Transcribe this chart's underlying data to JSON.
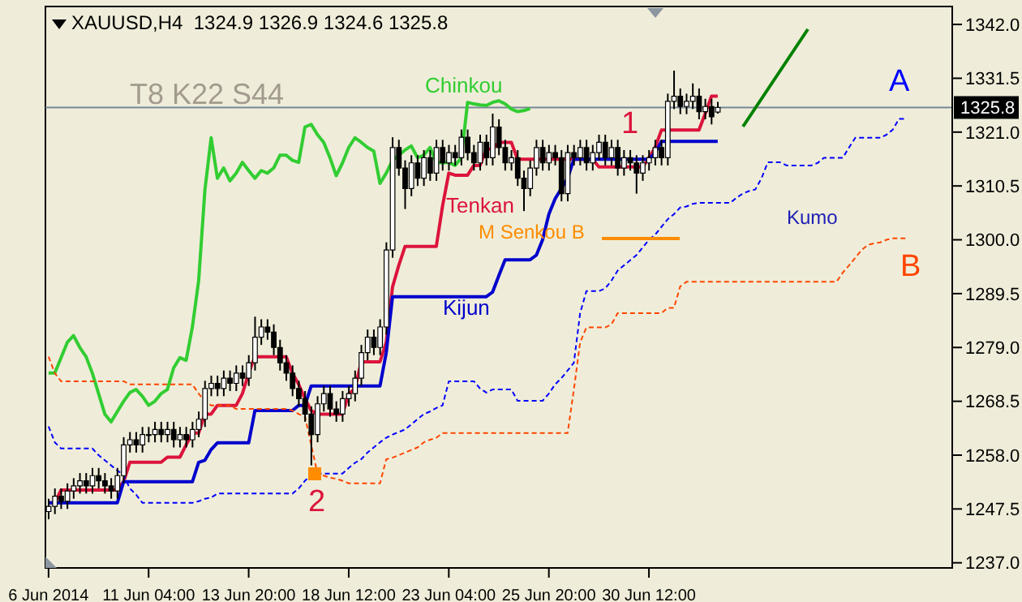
{
  "chart_data": {
    "type": "candlestick",
    "title": "XAUUSD,H4  1324.9 1326.9 1324.6 1325.8",
    "categories": [
      "6 Jun 2014",
      null,
      null,
      null,
      null,
      null,
      null,
      null,
      null,
      null,
      null,
      null,
      null,
      null,
      null,
      null,
      "11 Jun 04:00",
      null,
      null,
      null,
      null,
      null,
      null,
      null,
      null,
      null,
      null,
      null,
      null,
      null,
      null,
      null,
      "13 Jun 20:00",
      null,
      null,
      null,
      null,
      null,
      null,
      null,
      null,
      null,
      null,
      null,
      null,
      null,
      null,
      null,
      "18 Jun 12:00",
      null,
      null,
      null,
      null,
      null,
      null,
      null,
      null,
      null,
      null,
      null,
      null,
      null,
      null,
      null,
      "23 Jun 04:00",
      null,
      null,
      null,
      null,
      null,
      null,
      null,
      null,
      null,
      null,
      null,
      null,
      null,
      null,
      null,
      "25 Jun 20:00",
      null,
      null,
      null,
      null,
      null,
      null,
      null,
      null,
      null,
      null,
      null,
      null,
      null,
      null,
      null,
      "30 Jun 12:00",
      null,
      null,
      null,
      null,
      null,
      null,
      null,
      null,
      null,
      null,
      null,
      null,
      null,
      null,
      null,
      null,
      null,
      null,
      null,
      null,
      null,
      null,
      null,
      null,
      null,
      null,
      null,
      null,
      null,
      null,
      null,
      null,
      null,
      null,
      null,
      null,
      null,
      null,
      null,
      null,
      null,
      null,
      null,
      null,
      null,
      null,
      null,
      null
    ],
    "ohlc": [
      [
        1247,
        1249.5,
        1245.5,
        1248
      ],
      [
        1248,
        1251.5,
        1246.5,
        1250
      ],
      [
        1250,
        1251.5,
        1247.5,
        1249
      ],
      [
        1249,
        1252.5,
        1247.5,
        1251
      ],
      [
        1251,
        1253.5,
        1249.5,
        1252
      ],
      [
        1252,
        1254.5,
        1250.5,
        1253
      ],
      [
        1253,
        1254.5,
        1250.5,
        1252
      ],
      [
        1252,
        1255.5,
        1250.5,
        1254
      ],
      [
        1254,
        1255.5,
        1251.5,
        1253
      ],
      [
        1253,
        1254.5,
        1250.5,
        1252
      ],
      [
        1252,
        1253.5,
        1249.5,
        1251
      ],
      [
        1251,
        1255.5,
        1249.5,
        1254
      ],
      [
        1254,
        1261.5,
        1252.5,
        1260
      ],
      [
        1260,
        1262.5,
        1258.5,
        1261
      ],
      [
        1261,
        1262.5,
        1258.5,
        1260
      ],
      [
        1260,
        1263.5,
        1258.5,
        1262
      ],
      [
        1262,
        1263.5,
        1260.5,
        1262
      ],
      [
        1262,
        1264.5,
        1260.5,
        1263
      ],
      [
        1263,
        1264.5,
        1260.5,
        1262
      ],
      [
        1262,
        1264.5,
        1260.5,
        1263
      ],
      [
        1263,
        1264.5,
        1259.5,
        1261
      ],
      [
        1261,
        1263.5,
        1259.5,
        1262
      ],
      [
        1262,
        1263.5,
        1259.5,
        1261
      ],
      [
        1261,
        1264.5,
        1259.5,
        1263
      ],
      [
        1263,
        1266.5,
        1261.5,
        1265
      ],
      [
        1265,
        1272.5,
        1263.5,
        1271
      ],
      [
        1271,
        1273.5,
        1269.5,
        1272
      ],
      [
        1272,
        1273.5,
        1269.5,
        1271
      ],
      [
        1271,
        1274.5,
        1269.5,
        1273
      ],
      [
        1273,
        1274.5,
        1270.5,
        1272
      ],
      [
        1272,
        1275.5,
        1270.5,
        1274
      ],
      [
        1274,
        1275.5,
        1271.5,
        1273
      ],
      [
        1273,
        1277.5,
        1271.5,
        1276
      ],
      [
        1276,
        1285,
        1274.5,
        1281
      ],
      [
        1281,
        1284.5,
        1279.5,
        1283
      ],
      [
        1283,
        1284.5,
        1280.5,
        1282
      ],
      [
        1282,
        1283.5,
        1277.5,
        1279
      ],
      [
        1279,
        1280.5,
        1274.5,
        1276
      ],
      [
        1276,
        1277.5,
        1272.5,
        1274
      ],
      [
        1274,
        1275.5,
        1269.5,
        1271
      ],
      [
        1271,
        1272.5,
        1267.5,
        1269
      ],
      [
        1269,
        1270.5,
        1264.5,
        1266
      ],
      [
        1266,
        1267.5,
        1256,
        1262
      ],
      [
        1262,
        1269.5,
        1260.5,
        1268
      ],
      [
        1268,
        1271.5,
        1266.5,
        1270
      ],
      [
        1270,
        1271.5,
        1265.5,
        1267
      ],
      [
        1267,
        1268.5,
        1264.5,
        1266
      ],
      [
        1266,
        1270.5,
        1264.5,
        1269
      ],
      [
        1269,
        1271.5,
        1267.5,
        1270
      ],
      [
        1270,
        1274.5,
        1268.5,
        1273
      ],
      [
        1273,
        1279.5,
        1271.5,
        1278
      ],
      [
        1278,
        1282.5,
        1276.5,
        1281
      ],
      [
        1281,
        1282.5,
        1277.5,
        1279
      ],
      [
        1279,
        1284.5,
        1277.5,
        1283
      ],
      [
        1283,
        1299.5,
        1281.5,
        1298
      ],
      [
        1298,
        1320,
        1296.5,
        1318
      ],
      [
        1318,
        1319.5,
        1312.5,
        1314
      ],
      [
        1314,
        1315.5,
        1306,
        1310
      ],
      [
        1310,
        1316.5,
        1308.5,
        1315
      ],
      [
        1315,
        1316.5,
        1310.5,
        1312
      ],
      [
        1312,
        1317.5,
        1310.5,
        1316
      ],
      [
        1316,
        1317.5,
        1311.5,
        1313
      ],
      [
        1313,
        1319.5,
        1311.5,
        1318
      ],
      [
        1318,
        1319.5,
        1313.5,
        1315
      ],
      [
        1315,
        1318.5,
        1313.5,
        1317
      ],
      [
        1317,
        1318.5,
        1314.5,
        1316
      ],
      [
        1316,
        1321.5,
        1314.5,
        1320
      ],
      [
        1320,
        1321.5,
        1315.5,
        1317
      ],
      [
        1317,
        1318.5,
        1313.5,
        1315
      ],
      [
        1315,
        1320.5,
        1313.5,
        1319
      ],
      [
        1319,
        1320.5,
        1314.5,
        1316
      ],
      [
        1316,
        1324.6,
        1314.5,
        1322
      ],
      [
        1322,
        1323.5,
        1316.5,
        1318
      ],
      [
        1318,
        1319.5,
        1313.5,
        1315
      ],
      [
        1315,
        1317.5,
        1313.5,
        1316
      ],
      [
        1316,
        1317.5,
        1310.5,
        1312
      ],
      [
        1312,
        1313.5,
        1305.6,
        1310
      ],
      [
        1310,
        1315.5,
        1308.5,
        1314
      ],
      [
        1314,
        1319.5,
        1312.5,
        1318
      ],
      [
        1318,
        1319.5,
        1313.5,
        1315
      ],
      [
        1315,
        1318.5,
        1313.5,
        1317
      ],
      [
        1317,
        1318.5,
        1314.5,
        1316
      ],
      [
        1316,
        1317.5,
        1307.5,
        1309
      ],
      [
        1309,
        1318.5,
        1307.5,
        1317
      ],
      [
        1317,
        1318.5,
        1314.5,
        1316
      ],
      [
        1316,
        1319.5,
        1314.5,
        1318
      ],
      [
        1318,
        1319.5,
        1313.5,
        1315
      ],
      [
        1315,
        1318.5,
        1313.5,
        1317
      ],
      [
        1317,
        1320.5,
        1315.5,
        1319
      ],
      [
        1319,
        1320.5,
        1314.5,
        1316
      ],
      [
        1316,
        1319.5,
        1314.5,
        1318
      ],
      [
        1318,
        1319.5,
        1312.5,
        1314
      ],
      [
        1314,
        1317.5,
        1312.5,
        1316
      ],
      [
        1316,
        1317.5,
        1313.5,
        1315
      ],
      [
        1315,
        1316.5,
        1309,
        1313
      ],
      [
        1313,
        1316.5,
        1311.5,
        1315
      ],
      [
        1315,
        1317.5,
        1313.5,
        1316
      ],
      [
        1316,
        1319.5,
        1314.5,
        1318
      ],
      [
        1318,
        1319.5,
        1314.5,
        1316
      ],
      [
        1316,
        1328.5,
        1314.5,
        1327
      ],
      [
        1327,
        1333,
        1325.5,
        1328
      ],
      [
        1328,
        1329.5,
        1324.5,
        1326
      ],
      [
        1326,
        1328.5,
        1324.5,
        1327
      ],
      [
        1327,
        1330.5,
        1325.5,
        1328
      ],
      [
        1328,
        1329.5,
        1323.5,
        1325
      ],
      [
        1325,
        1327.5,
        1323.5,
        1326
      ],
      [
        1326,
        1327.5,
        1322.5,
        1324
      ],
      [
        1324.9,
        1326.9,
        1324.6,
        1325.8
      ],
      null,
      null,
      null,
      null,
      null,
      null,
      null,
      null,
      null,
      null,
      null,
      null,
      null,
      null,
      null,
      null,
      null,
      null,
      null,
      null,
      null,
      null,
      null,
      null,
      null,
      null,
      null,
      null,
      null,
      null,
      null,
      null,
      null,
      null,
      null,
      null,
      null
    ],
    "series": [
      {
        "name": "Tenkan",
        "type": "line",
        "color": "#dc143c",
        "line_style": "solid",
        "values": [
          1248.7,
          1248.7,
          1251.2,
          1251.2,
          1251.2,
          1251.2,
          1251.2,
          1251.2,
          1251.2,
          1251.2,
          1251.2,
          1251.2,
          1252.8,
          1256.6,
          1256.6,
          1256.6,
          1256.6,
          1256.6,
          1256.6,
          1257.6,
          1257.6,
          1257.6,
          1260,
          1262.3,
          1262.3,
          1266,
          1266,
          1267.7,
          1267.7,
          1267.7,
          1267.7,
          1270,
          1274,
          1277.2,
          1277.2,
          1277.2,
          1277.2,
          1277.2,
          1277.2,
          1274,
          1271.8,
          1269,
          1266.7,
          1266,
          1266,
          1266,
          1266,
          1266,
          1269.9,
          1271,
          1276.2,
          1276.2,
          1276.2,
          1276.2,
          1280,
          1290.8,
          1295,
          1298.7,
          1298.7,
          1298.7,
          1298.7,
          1298.7,
          1298.7,
          1306.6,
          1313,
          1312.6,
          1312.6,
          1312.6,
          1314.5,
          1314.5,
          1317.7,
          1317.7,
          1319,
          1319,
          1319,
          1315.7,
          1315.7,
          1315.7,
          1315.7,
          1315.7,
          1315.7,
          1315.7,
          1315.7,
          1315.7,
          1315.7,
          1315.7,
          1315.7,
          1315.7,
          1314.2,
          1314.2,
          1314.2,
          1314.2,
          1314.2,
          1314.2,
          1314.2,
          1314.2,
          1316,
          1318,
          1321.4,
          1321.4,
          1321.4,
          1321.4,
          1321.4,
          1321.4,
          1321.4,
          1324.6,
          1328,
          1328,
          null,
          null,
          null,
          null,
          null,
          null,
          null,
          null,
          null,
          null,
          null,
          null,
          null,
          null,
          null,
          null,
          null,
          null,
          null,
          null,
          null,
          null,
          null,
          null,
          null,
          null,
          null,
          null,
          null,
          null,
          null,
          null,
          null,
          null,
          null,
          null,
          null
        ]
      },
      {
        "name": "Kijun",
        "type": "line",
        "color": "#0000cd",
        "line_style": "solid",
        "values": [
          1248.7,
          1248.7,
          1248.7,
          1248.7,
          1248.7,
          1248.7,
          1248.7,
          1248.7,
          1248.7,
          1248.7,
          1248.7,
          1248.7,
          1252.8,
          1252.8,
          1252.8,
          1252.8,
          1252.8,
          1252.8,
          1252.8,
          1252.8,
          1252.8,
          1252.8,
          1252.8,
          1252.8,
          1256.6,
          1257,
          1259.1,
          1260.4,
          1260.4,
          1260.4,
          1260.4,
          1260.4,
          1260.4,
          1266.7,
          1266.7,
          1266.7,
          1266.7,
          1266.7,
          1266.7,
          1266.7,
          1267.7,
          1267.7,
          1271.5,
          1271.5,
          1271.5,
          1271.5,
          1271.5,
          1271.5,
          1271.5,
          1271.5,
          1271.5,
          1271.5,
          1271.5,
          1271.5,
          1278,
          1288.9,
          1288.9,
          1288.9,
          1288.9,
          1288.9,
          1288.9,
          1288.9,
          1288.9,
          1288.9,
          1288.9,
          1288.9,
          1288.9,
          1288.9,
          1288.9,
          1288.9,
          1288.9,
          1289.8,
          1293,
          1296.1,
          1296.1,
          1296.1,
          1296.1,
          1296.1,
          1297,
          1300,
          1305,
          1308,
          1310,
          1312,
          1315.7,
          1315.7,
          1315.7,
          1315.7,
          1315.7,
          1315.7,
          1315.7,
          1315.7,
          1315.7,
          1315.7,
          1315.7,
          1315.7,
          1315.7,
          1317,
          1319.2,
          1319.2,
          1319.2,
          1319.2,
          1319.2,
          1319.2,
          1319.2,
          1319.2,
          1319.2,
          1319.2,
          null,
          null,
          null,
          null,
          null,
          null,
          null,
          null,
          null,
          null,
          null,
          null,
          null,
          null,
          null,
          null,
          null,
          null,
          null,
          null,
          null,
          null,
          null,
          null,
          null,
          null,
          null,
          null,
          null,
          null,
          null,
          null,
          null,
          null,
          null,
          null,
          null
        ]
      },
      {
        "name": "Chinkou",
        "type": "line",
        "color": "#32cd32",
        "line_style": "solid",
        "values": [
          1274,
          1274,
          1277,
          1280,
          1281.3,
          1279,
          1277.2,
          1274,
          1270,
          1266,
          1264.5,
          1266.5,
          1268.5,
          1270.2,
          1270.8,
          1269.5,
          1267.7,
          1268.5,
          1270,
          1270.8,
          1275,
          1277,
          1276.5,
          1283,
          1292,
          1309.7,
          1319.9,
          1312,
          1314,
          1311.5,
          1313,
          1315.1,
          1313.5,
          1312,
          1313.5,
          1313,
          1314,
          1316.5,
          1316.5,
          1315.5,
          1315.1,
          1322,
          1322.5,
          1320.5,
          1319,
          1316,
          1312.5,
          1315,
          1318,
          1319.9,
          1319,
          1318,
          1317.3,
          1311,
          1313,
          1315.5,
          1316.5,
          1317.5,
          1318.3,
          1316,
          1316.5,
          1318,
          1315.1,
          1315,
          1315.1,
          1314.5,
          1316,
          1326.8,
          1326.5,
          1326.3,
          1326.2,
          1326.8,
          1327.1,
          1326.5,
          1325.5,
          1325,
          1325.2,
          1325.6,
          null,
          null,
          null,
          null,
          null,
          null,
          null,
          null,
          null,
          null,
          null,
          null,
          null,
          null,
          null,
          null,
          null,
          null,
          null,
          null,
          null,
          null,
          null,
          null,
          null,
          null,
          null,
          null,
          null,
          null,
          null,
          null,
          null,
          null,
          null,
          null,
          null,
          null,
          null,
          null,
          null,
          null,
          null,
          null,
          null,
          null,
          null,
          null,
          null,
          null,
          null,
          null,
          null,
          null,
          null,
          null,
          null,
          null,
          null,
          null,
          null,
          null,
          null,
          null,
          null,
          null,
          null
        ]
      },
      {
        "name": "A",
        "type": "line",
        "color": "#0000ff",
        "line_style": "dashed",
        "values": [
          1263.6,
          1260.5,
          1259.3,
          1259.3,
          1259.3,
          1259.3,
          1259.3,
          1259.3,
          1258,
          1257,
          1256,
          1255,
          1254.1,
          1251.5,
          1250.3,
          1248.7,
          1248.7,
          1248.7,
          1248.7,
          1248.7,
          1248.7,
          1248.7,
          1248.7,
          1248.7,
          1249,
          1249.5,
          1249.7,
          1250.5,
          1250.5,
          1250.5,
          1250.5,
          1250.5,
          1250.5,
          1250.5,
          1250.5,
          1250.5,
          1250.5,
          1250.5,
          1250.5,
          1250.5,
          1251.5,
          1253,
          1254.1,
          1254.4,
          1254.4,
          1254.4,
          1254.4,
          1254.4,
          1255.5,
          1256.5,
          1257.2,
          1258.5,
          1259.5,
          1260.5,
          1261.4,
          1262,
          1262.5,
          1263,
          1264,
          1265,
          1266,
          1266.5,
          1267.2,
          1267.7,
          1272.4,
          1272.4,
          1272.4,
          1272.4,
          1272.4,
          1271,
          1270.2,
          1270.8,
          1270.8,
          1270.8,
          1270.8,
          1268.6,
          1268.6,
          1268.6,
          1268.6,
          1268.6,
          1270,
          1271.8,
          1273,
          1274.5,
          1276,
          1285.7,
          1290,
          1290,
          1290,
          1290.5,
          1292,
          1294,
          1295,
          1296,
          1297,
          1298.5,
          1300,
          1301,
          1302.5,
          1304,
          1305,
          1306.3,
          1306.5,
          1307,
          1307.2,
          1307.2,
          1307.2,
          1307.2,
          1307.2,
          1307.2,
          1308.2,
          1309,
          1309.5,
          1309.8,
          1312,
          1315.1,
          1315.1,
          1315.1,
          1314.5,
          1314.5,
          1314.5,
          1314.5,
          1314.5,
          1315,
          1316,
          1316,
          1316,
          1316,
          1318,
          1319.9,
          1319.9,
          1319.9,
          1319.9,
          1319.9,
          1320.5,
          1321.5,
          1323.6,
          1323.6,
          null,
          null,
          null,
          null,
          null,
          null,
          null
        ]
      },
      {
        "name": "B",
        "type": "line",
        "color": "#ff4500",
        "line_style": "dashed",
        "values": [
          1277.2,
          1274,
          1272.4,
          1272.4,
          1272.4,
          1272.4,
          1272.4,
          1272.4,
          1272.4,
          1272.4,
          1272.4,
          1272.4,
          1272.4,
          1271.8,
          1271.8,
          1271.8,
          1271.8,
          1271.8,
          1271.8,
          1271.8,
          1271.8,
          1271.8,
          1271.8,
          1271.8,
          1270,
          1268.5,
          1267.7,
          1267.7,
          1267.7,
          1267.7,
          1267,
          1267,
          1267,
          1267,
          1267,
          1267,
          1267,
          1267,
          1267,
          1266.7,
          1266,
          1265.5,
          1260,
          1254.4,
          1254,
          1253.6,
          1253.4,
          1253,
          1252.5,
          1252.5,
          1252.5,
          1252.5,
          1252.5,
          1252.5,
          1257.2,
          1257.5,
          1258,
          1258.5,
          1259,
          1259.5,
          1260.5,
          1261,
          1261.4,
          1262.3,
          1262.3,
          1262.3,
          1262.3,
          1262.3,
          1262.3,
          1262.3,
          1262.3,
          1262.3,
          1262.3,
          1262.3,
          1262.3,
          1262.3,
          1262.3,
          1262.3,
          1262.3,
          1262.3,
          1262.3,
          1262.3,
          1262.3,
          1262.3,
          1270.8,
          1280,
          1282.9,
          1282.9,
          1282.9,
          1282.9,
          1283.5,
          1285.7,
          1285.7,
          1285.7,
          1285.7,
          1285.7,
          1285.7,
          1285.7,
          1285.7,
          1286.7,
          1286.7,
          1290.9,
          1291.8,
          1291.8,
          1291.8,
          1291.8,
          1291.8,
          1291.8,
          1291.8,
          1291.8,
          1291.8,
          1291.8,
          1291.8,
          1291.8,
          1291.8,
          1291.8,
          1291.8,
          1291.8,
          1291.8,
          1291.8,
          1291.8,
          1291.8,
          1291.8,
          1291.8,
          1291.8,
          1291.8,
          1291.8,
          1293.6,
          1295,
          1296.5,
          1298,
          1299,
          1299.3,
          1299.5,
          1300,
          1300.3,
          1300.3,
          1300.3,
          null,
          null,
          null,
          null,
          null,
          null,
          null
        ]
      }
    ],
    "ylim": [
      1236,
      1345.5
    ],
    "yticks": [
      {
        "value": 1237,
        "label": "1237.0"
      },
      1247.5,
      {
        "value": 1258,
        "label": "1258.0"
      },
      1268.5,
      {
        "value": 1279,
        "label": "1279.0"
      },
      1289.5,
      {
        "value": 1300,
        "label": "1300.0"
      },
      1310.5,
      {
        "value": 1321,
        "label": "1321.0"
      },
      1331.5,
      {
        "value": 1342,
        "label": "1342.0"
      }
    ],
    "ref_lines": [
      {
        "axis": "y",
        "value": 1325.8,
        "label": "1325.8",
        "color": "#778899"
      }
    ],
    "annotations": [
      "T8 K22 S44",
      "M Senkou B",
      "Kumo",
      "1",
      {
        "text": "2",
        "y": 1254
      }
    ],
    "marker": "none"
  }
}
